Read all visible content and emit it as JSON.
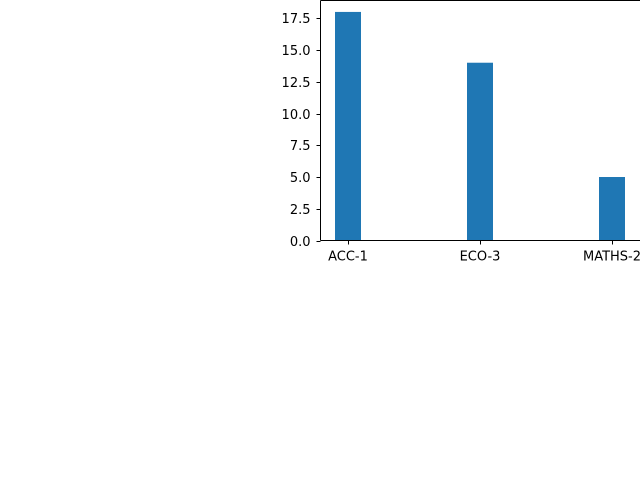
{
  "chart_data": {
    "type": "bar",
    "title": "",
    "xlabel": "",
    "ylabel": "",
    "categories": [
      "ACC-1",
      "ECO-3",
      "MATHS-2"
    ],
    "values": [
      18,
      14,
      5
    ],
    "ylim": [
      0,
      18.9
    ],
    "yticks": [
      0.0,
      2.5,
      5.0,
      7.5,
      10.0,
      12.5,
      15.0,
      17.5
    ],
    "ytick_labels": [
      "0.0",
      "2.5",
      "5.0",
      "7.5",
      "10.0",
      "12.5",
      "15.0",
      "17.5"
    ],
    "grid": false,
    "legend": "none",
    "bar_color": "#1f77b4"
  }
}
